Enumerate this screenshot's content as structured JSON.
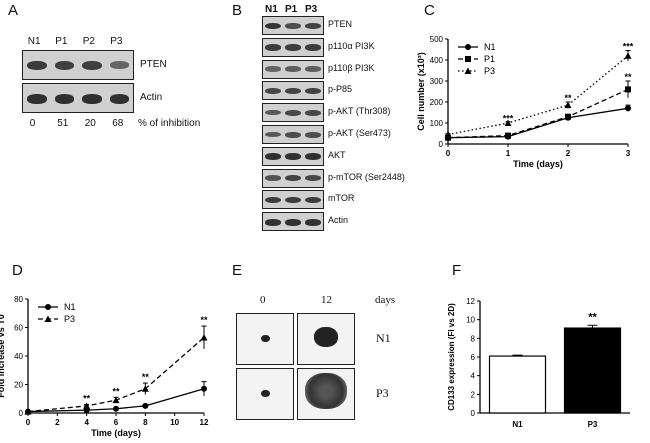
{
  "panels": {
    "A": {
      "letter": "A",
      "lanes": [
        "N1",
        "P1",
        "P2",
        "P3"
      ],
      "rows": [
        {
          "label": "PTEN",
          "intensity": [
            0.85,
            0.8,
            0.82,
            0.45
          ]
        },
        {
          "label": "Actin",
          "intensity": [
            0.95,
            0.95,
            0.95,
            0.95
          ]
        }
      ],
      "inhibition": [
        "0",
        "51",
        "20",
        "68"
      ],
      "inhibition_label": "% of inhibition"
    },
    "B": {
      "letter": "B",
      "lanes": [
        "N1",
        "P1",
        "P3"
      ],
      "rows": [
        {
          "label": "PTEN",
          "intensity": [
            0.9,
            0.7,
            0.8
          ]
        },
        {
          "label": "p110α PI3K",
          "intensity": [
            0.85,
            0.85,
            0.85
          ]
        },
        {
          "label": "p110β PI3K",
          "intensity": [
            0.5,
            0.55,
            0.55
          ]
        },
        {
          "label": "p-P85",
          "intensity": [
            0.75,
            0.8,
            0.8
          ]
        },
        {
          "label": "p-AKT (Thr308)",
          "intensity": [
            0.6,
            0.75,
            0.75
          ]
        },
        {
          "label": "p-AKT (Ser473)",
          "intensity": [
            0.6,
            0.7,
            0.7
          ]
        },
        {
          "label": "AKT",
          "intensity": [
            0.95,
            0.95,
            0.95
          ]
        },
        {
          "label": "p-mTOR (Ser2448)",
          "intensity": [
            0.65,
            0.8,
            0.75
          ]
        },
        {
          "label": "mTOR",
          "intensity": [
            0.85,
            0.85,
            0.85
          ]
        },
        {
          "label": "Actin",
          "intensity": [
            0.95,
            0.95,
            0.95
          ]
        }
      ]
    },
    "E": {
      "letter": "E",
      "timepoints": [
        "0",
        "12"
      ],
      "unit": "days",
      "rows": [
        "N1",
        "P3"
      ]
    }
  },
  "chart_data": [
    {
      "id": "C",
      "letter": "C",
      "type": "line",
      "xlabel": "Time (days)",
      "ylabel": "Cell number (x10³)",
      "xlim": [
        0,
        3
      ],
      "ylim": [
        0,
        500
      ],
      "xticks": [
        "0",
        "1",
        "2",
        "3"
      ],
      "yticks": [
        "0",
        "100",
        "200",
        "300",
        "400",
        "500"
      ],
      "series": [
        {
          "name": "N1",
          "marker": "circle",
          "dash": "solid",
          "x": [
            0,
            1,
            2,
            3
          ],
          "y": [
            30,
            35,
            125,
            170
          ],
          "err": [
            3,
            4,
            8,
            15
          ]
        },
        {
          "name": "P1",
          "marker": "square",
          "dash": "dashed",
          "x": [
            0,
            1,
            2,
            3
          ],
          "y": [
            30,
            40,
            130,
            260
          ],
          "err": [
            3,
            4,
            10,
            40
          ]
        },
        {
          "name": "P3",
          "marker": "triangle",
          "dash": "dotted",
          "x": [
            0,
            1,
            2,
            3
          ],
          "y": [
            45,
            100,
            185,
            420
          ],
          "err": [
            4,
            6,
            15,
            25
          ]
        }
      ],
      "annotations": [
        {
          "x": 1,
          "y": 108,
          "text": "***"
        },
        {
          "x": 2,
          "y": 205,
          "text": "**"
        },
        {
          "x": 3,
          "y": 450,
          "text": "***"
        },
        {
          "x": 3,
          "y": 305,
          "text": "**"
        }
      ]
    },
    {
      "id": "D",
      "letter": "D",
      "type": "line",
      "xlabel": "Time (days)",
      "ylabel": "Fold increase vs T0",
      "xlim": [
        0,
        12
      ],
      "ylim": [
        0,
        80
      ],
      "xticks": [
        "0",
        "2",
        "4",
        "6",
        "8",
        "10",
        "12"
      ],
      "yticks": [
        "0",
        "20",
        "40",
        "60",
        "80"
      ],
      "series": [
        {
          "name": "N1",
          "marker": "circle",
          "dash": "solid",
          "x": [
            0,
            4,
            6,
            8,
            12
          ],
          "y": [
            1,
            2,
            3,
            5,
            17
          ],
          "err": [
            0.5,
            0.5,
            0.5,
            1,
            5
          ]
        },
        {
          "name": "P3",
          "marker": "triangle",
          "dash": "dashed",
          "x": [
            0,
            4,
            6,
            8,
            12
          ],
          "y": [
            1,
            5,
            9,
            17,
            53
          ],
          "err": [
            0.5,
            1,
            2,
            4,
            8
          ]
        }
      ],
      "annotations": [
        {
          "x": 4,
          "y": 8,
          "text": "**"
        },
        {
          "x": 6,
          "y": 13,
          "text": "**"
        },
        {
          "x": 8,
          "y": 23,
          "text": "**"
        },
        {
          "x": 12,
          "y": 63,
          "text": "**"
        }
      ]
    },
    {
      "id": "F",
      "letter": "F",
      "type": "bar",
      "ylabel": "CD133 expression (FI vs 2D)",
      "categories": [
        "N1",
        "P3"
      ],
      "values": [
        6.1,
        9.1
      ],
      "err": [
        0.1,
        0.3
      ],
      "fills": [
        "#ffffff",
        "#000000"
      ],
      "ylim": [
        0,
        12
      ],
      "yticks": [
        "0",
        "2",
        "4",
        "6",
        "8",
        "10",
        "12"
      ],
      "annotations": [
        {
          "category": "P3",
          "text": "**"
        }
      ]
    }
  ]
}
